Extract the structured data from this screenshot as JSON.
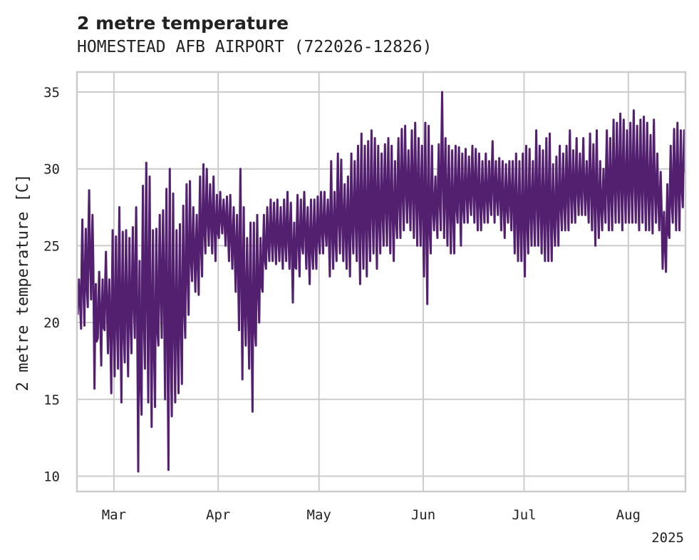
{
  "chart_data": {
    "type": "line",
    "title": "2 metre temperature",
    "subtitle": "HOMESTEAD AFB AIRPORT (722026-12826)",
    "xlabel": "",
    "ylabel": "2 metre temperature [C]",
    "xlim": [
      "2025-02-18",
      "2025-08-18"
    ],
    "ylim": [
      9.0,
      36.3
    ],
    "x_ticks": [
      {
        "label": "Mar",
        "value": "2025-03-01"
      },
      {
        "label": "Apr",
        "value": "2025-04-01"
      },
      {
        "label": "May",
        "value": "2025-05-01"
      },
      {
        "label": "Jun",
        "value": "2025-06-01"
      },
      {
        "label": "Jul",
        "value": "2025-07-01"
      },
      {
        "label": "Aug",
        "value": "2025-08-01"
      }
    ],
    "x_offset_label": "2025",
    "y_ticks": [
      10,
      15,
      20,
      25,
      30,
      35
    ],
    "grid": true,
    "series_color": "#531f6f",
    "x": [
      "2025-02-18",
      "2025-02-19",
      "2025-02-20",
      "2025-02-21",
      "2025-02-22",
      "2025-02-23",
      "2025-02-24",
      "2025-02-25",
      "2025-02-26",
      "2025-02-27",
      "2025-02-28",
      "2025-03-01",
      "2025-03-02",
      "2025-03-03",
      "2025-03-04",
      "2025-03-05",
      "2025-03-06",
      "2025-03-07",
      "2025-03-08",
      "2025-03-09",
      "2025-03-10",
      "2025-03-11",
      "2025-03-12",
      "2025-03-13",
      "2025-03-14",
      "2025-03-15",
      "2025-03-16",
      "2025-03-17",
      "2025-03-18",
      "2025-03-19",
      "2025-03-20",
      "2025-03-21",
      "2025-03-22",
      "2025-03-23",
      "2025-03-24",
      "2025-03-25",
      "2025-03-26",
      "2025-03-27",
      "2025-03-28",
      "2025-03-29",
      "2025-03-30",
      "2025-03-31",
      "2025-04-01",
      "2025-04-02",
      "2025-04-03",
      "2025-04-04",
      "2025-04-05",
      "2025-04-06",
      "2025-04-07",
      "2025-04-08",
      "2025-04-09",
      "2025-04-10",
      "2025-04-11",
      "2025-04-12",
      "2025-04-13",
      "2025-04-14",
      "2025-04-15",
      "2025-04-16",
      "2025-04-17",
      "2025-04-18",
      "2025-04-19",
      "2025-04-20",
      "2025-04-21",
      "2025-04-22",
      "2025-04-23",
      "2025-04-24",
      "2025-04-25",
      "2025-04-26",
      "2025-04-27",
      "2025-04-28",
      "2025-04-29",
      "2025-04-30",
      "2025-05-01",
      "2025-05-02",
      "2025-05-03",
      "2025-05-04",
      "2025-05-05",
      "2025-05-06",
      "2025-05-07",
      "2025-05-08",
      "2025-05-09",
      "2025-05-10",
      "2025-05-11",
      "2025-05-12",
      "2025-05-13",
      "2025-05-14",
      "2025-05-15",
      "2025-05-16",
      "2025-05-17",
      "2025-05-18",
      "2025-05-19",
      "2025-05-20",
      "2025-05-21",
      "2025-05-22",
      "2025-05-23",
      "2025-05-24",
      "2025-05-25",
      "2025-05-26",
      "2025-05-27",
      "2025-05-28",
      "2025-05-29",
      "2025-05-30",
      "2025-05-31",
      "2025-06-01",
      "2025-06-02",
      "2025-06-03",
      "2025-06-04",
      "2025-06-05",
      "2025-06-06",
      "2025-06-07",
      "2025-06-08",
      "2025-06-09",
      "2025-06-10",
      "2025-06-11",
      "2025-06-12",
      "2025-06-13",
      "2025-06-14",
      "2025-06-15",
      "2025-06-16",
      "2025-06-17",
      "2025-06-18",
      "2025-06-19",
      "2025-06-20",
      "2025-06-21",
      "2025-06-22",
      "2025-06-23",
      "2025-06-24",
      "2025-06-25",
      "2025-06-26",
      "2025-06-27",
      "2025-06-28",
      "2025-06-29",
      "2025-06-30",
      "2025-07-01",
      "2025-07-02",
      "2025-07-03",
      "2025-07-04",
      "2025-07-05",
      "2025-07-06",
      "2025-07-07",
      "2025-07-08",
      "2025-07-09",
      "2025-07-10",
      "2025-07-11",
      "2025-07-12",
      "2025-07-13",
      "2025-07-14",
      "2025-07-15",
      "2025-07-16",
      "2025-07-17",
      "2025-07-18",
      "2025-07-19",
      "2025-07-20",
      "2025-07-21",
      "2025-07-22",
      "2025-07-23",
      "2025-07-24",
      "2025-07-25",
      "2025-07-26",
      "2025-07-27",
      "2025-07-28",
      "2025-07-29",
      "2025-07-30",
      "2025-07-31",
      "2025-08-01",
      "2025-08-02",
      "2025-08-03",
      "2025-08-04",
      "2025-08-05",
      "2025-08-06",
      "2025-08-07",
      "2025-08-08",
      "2025-08-09",
      "2025-08-10",
      "2025-08-11",
      "2025-08-12",
      "2025-08-13",
      "2025-08-14",
      "2025-08-15",
      "2025-08-16",
      "2025-08-17"
    ],
    "y_min": [
      20.5,
      19.6,
      19.8,
      21.0,
      21.5,
      15.7,
      19.0,
      17.2,
      19.5,
      18.0,
      15.4,
      16.5,
      17.0,
      14.8,
      17.4,
      16.5,
      18.0,
      19.0,
      10.3,
      14.0,
      17.0,
      14.8,
      13.2,
      14.5,
      18.5,
      19.0,
      15.0,
      10.4,
      13.9,
      14.8,
      15.4,
      16.0,
      19.0,
      20.5,
      22.7,
      22.0,
      21.8,
      23.0,
      24.5,
      25.0,
      24.5,
      24.0,
      25.5,
      25.8,
      25.0,
      24.0,
      23.5,
      22.0,
      19.5,
      16.3,
      18.5,
      17.0,
      14.2,
      18.5,
      20.0,
      22.0,
      23.5,
      24.0,
      24.0,
      23.8,
      24.0,
      23.5,
      24.0,
      23.5,
      21.3,
      23.5,
      23.0,
      24.5,
      23.5,
      22.5,
      23.5,
      23.5,
      24.5,
      24.5,
      25.0,
      23.0,
      23.5,
      24.0,
      24.5,
      24.0,
      23.5,
      23.0,
      24.5,
      24.0,
      22.5,
      23.5,
      23.0,
      24.0,
      24.5,
      23.5,
      24.5,
      25.0,
      25.0,
      24.5,
      24.0,
      25.5,
      25.5,
      26.0,
      26.5,
      26.0,
      25.5,
      25.0,
      25.0,
      23.0,
      21.2,
      24.5,
      26.0,
      25.5,
      26.0,
      25.5,
      25.0,
      24.5,
      24.5,
      26.5,
      25.0,
      26.5,
      26.5,
      27.0,
      26.5,
      26.0,
      26.0,
      26.5,
      26.5,
      27.0,
      26.5,
      27.0,
      26.0,
      25.5,
      26.5,
      26.0,
      24.5,
      24.0,
      24.0,
      23.0,
      24.5,
      25.0,
      25.0,
      25.0,
      24.5,
      24.0,
      24.0,
      24.0,
      25.0,
      25.0,
      26.0,
      26.0,
      26.0,
      26.5,
      26.5,
      27.0,
      27.0,
      27.0,
      26.5,
      26.0,
      25.0,
      25.5,
      26.0,
      26.5,
      26.0,
      26.0,
      26.5,
      26.5,
      26.0,
      26.5,
      26.5,
      26.5,
      26.5,
      26.0,
      26.5,
      26.0,
      26.0,
      25.8,
      26.5,
      26.0,
      23.5,
      23.3,
      25.5,
      26.5,
      26.0,
      26.0,
      27.5
    ],
    "y_max": [
      22.8,
      26.7,
      26.1,
      28.6,
      27.0,
      22.5,
      23.3,
      22.8,
      24.6,
      22.8,
      26.0,
      25.6,
      27.5,
      25.9,
      26.0,
      25.5,
      26.2,
      27.5,
      24.0,
      28.9,
      30.4,
      29.5,
      26.0,
      26.1,
      27.0,
      27.3,
      28.7,
      30.0,
      28.4,
      26.0,
      26.4,
      27.6,
      29.0,
      29.2,
      27.5,
      27.0,
      29.5,
      30.3,
      30.0,
      29.0,
      29.5,
      28.3,
      28.5,
      28.0,
      28.2,
      28.3,
      27.5,
      27.0,
      30.0,
      27.5,
      25.5,
      26.5,
      26.5,
      27.0,
      25.5,
      27.0,
      27.5,
      28.0,
      27.8,
      28.0,
      27.5,
      28.0,
      28.5,
      27.8,
      26.5,
      28.3,
      28.0,
      28.5,
      27.5,
      28.0,
      28.0,
      28.2,
      28.5,
      28.5,
      28.0,
      30.5,
      28.5,
      31.0,
      30.6,
      29.0,
      29.5,
      31.0,
      30.5,
      31.5,
      32.3,
      31.5,
      31.8,
      32.5,
      32.0,
      31.5,
      31.0,
      31.6,
      32.0,
      31.5,
      30.5,
      32.0,
      32.6,
      32.8,
      31.2,
      32.5,
      33.0,
      32.0,
      31.5,
      33.0,
      32.8,
      31.5,
      29.5,
      31.6,
      35.0,
      32.0,
      31.5,
      31.2,
      31.5,
      31.4,
      31.0,
      31.3,
      30.8,
      31.5,
      31.3,
      31.0,
      30.5,
      31.0,
      30.5,
      31.8,
      30.5,
      30.7,
      30.5,
      30.3,
      30.5,
      30.5,
      31.0,
      30.5,
      31.0,
      31.5,
      31.3,
      30.5,
      32.5,
      31.5,
      31.2,
      32.0,
      32.3,
      30.3,
      30.8,
      31.5,
      31.0,
      31.5,
      32.5,
      31.2,
      32.0,
      31.0,
      32.0,
      30.5,
      32.3,
      31.6,
      32.5,
      30.5,
      30.0,
      32.5,
      32.0,
      33.2,
      33.0,
      33.6,
      33.2,
      32.5,
      33.0,
      33.8,
      32.8,
      33.2,
      33.4,
      33.0,
      32.2,
      33.2,
      31.0,
      29.8,
      27.2,
      29.0,
      31.5,
      32.6,
      33.0,
      32.5,
      32.5
    ]
  }
}
